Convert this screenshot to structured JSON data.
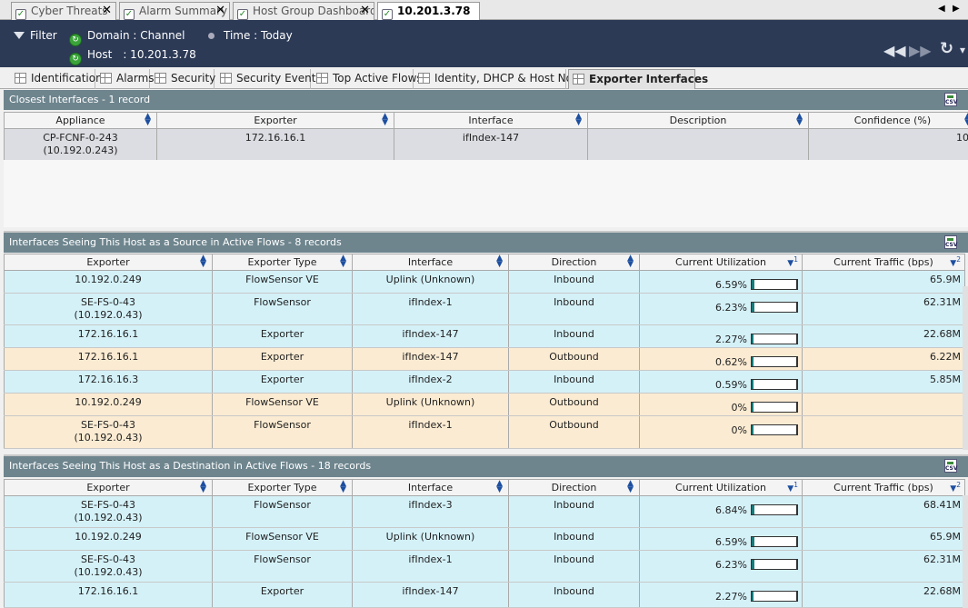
{
  "tabs": [
    {
      "label": "Cyber Threats"
    },
    {
      "label": "Alarm Summary"
    },
    {
      "label": "Host Group Dashboard"
    },
    {
      "label": "10.201.3.78"
    }
  ],
  "header": {
    "filter": "Filter",
    "domain": "Domain : Channel",
    "time": "Time : Today",
    "host_label": "Host",
    "host_value": ": 10.201.3.78"
  },
  "subtabs": [
    {
      "label": "Identification"
    },
    {
      "label": "Alarms"
    },
    {
      "label": "Security"
    },
    {
      "label": "Security Events"
    },
    {
      "label": "Top Active Flows"
    },
    {
      "label": "Identity, DHCP & Host Notes"
    },
    {
      "label": "Exporter Interfaces"
    }
  ],
  "closest": {
    "title": "Closest Interfaces - 1 record",
    "columns": [
      "Appliance",
      "Exporter",
      "Interface",
      "Description",
      "Confidence (%)"
    ],
    "rows": [
      {
        "appliance": "CP-FCNF-0-243",
        "appliance2": "(10.192.0.243)",
        "exporter": "172.16.16.1",
        "interface": "ifIndex-147",
        "description": "",
        "confidence": "10"
      }
    ]
  },
  "source": {
    "title": "Interfaces Seeing This Host as a Source in Active Flows - 8 records",
    "columns": [
      "Exporter",
      "Exporter Type",
      "Interface",
      "Direction",
      "Current Utilization",
      "Current Traffic (bps)"
    ],
    "sort1": "1",
    "sort2": "2",
    "rows": [
      {
        "exp": "10.192.0.249",
        "exp2": "",
        "type": "FlowSensor VE",
        "iface": "Uplink (Unknown)",
        "dir": "Inbound",
        "util": "6.59%",
        "util_frac": 0.0659,
        "traffic": "65.9M"
      },
      {
        "exp": "SE-FS-0-43",
        "exp2": "(10.192.0.43)",
        "type": "FlowSensor",
        "iface": "ifIndex-1",
        "dir": "Inbound",
        "util": "6.23%",
        "util_frac": 0.0623,
        "traffic": "62.31M"
      },
      {
        "exp": "172.16.16.1",
        "exp2": "",
        "type": "Exporter",
        "iface": "ifIndex-147",
        "dir": "Inbound",
        "util": "2.27%",
        "util_frac": 0.0227,
        "traffic": "22.68M"
      },
      {
        "exp": "172.16.16.1",
        "exp2": "",
        "type": "Exporter",
        "iface": "ifIndex-147",
        "dir": "Outbound",
        "util": "0.62%",
        "util_frac": 0.0062,
        "traffic": "6.22M"
      },
      {
        "exp": "172.16.16.3",
        "exp2": "",
        "type": "Exporter",
        "iface": "ifIndex-2",
        "dir": "Inbound",
        "util": "0.59%",
        "util_frac": 0.0059,
        "traffic": "5.85M"
      },
      {
        "exp": "10.192.0.249",
        "exp2": "",
        "type": "FlowSensor VE",
        "iface": "Uplink (Unknown)",
        "dir": "Outbound",
        "util": "0%",
        "util_frac": 0,
        "traffic": ""
      },
      {
        "exp": "SE-FS-0-43",
        "exp2": "(10.192.0.43)",
        "type": "FlowSensor",
        "iface": "ifIndex-1",
        "dir": "Outbound",
        "util": "0%",
        "util_frac": 0,
        "traffic": ""
      }
    ]
  },
  "dest": {
    "title": "Interfaces Seeing This Host as a Destination in Active Flows - 18 records",
    "columns": [
      "Exporter",
      "Exporter Type",
      "Interface",
      "Direction",
      "Current Utilization",
      "Current Traffic (bps)"
    ],
    "sort1": "1",
    "sort2": "2",
    "rows": [
      {
        "exp": "SE-FS-0-43",
        "exp2": "(10.192.0.43)",
        "type": "FlowSensor",
        "iface": "ifIndex-3",
        "dir": "Inbound",
        "util": "6.84%",
        "util_frac": 0.0684,
        "traffic": "68.41M"
      },
      {
        "exp": "10.192.0.249",
        "exp2": "",
        "type": "FlowSensor VE",
        "iface": "Uplink (Unknown)",
        "dir": "Inbound",
        "util": "6.59%",
        "util_frac": 0.0659,
        "traffic": "65.9M"
      },
      {
        "exp": "SE-FS-0-43",
        "exp2": "(10.192.0.43)",
        "type": "FlowSensor",
        "iface": "ifIndex-1",
        "dir": "Inbound",
        "util": "6.23%",
        "util_frac": 0.0623,
        "traffic": "62.31M"
      },
      {
        "exp": "172.16.16.1",
        "exp2": "",
        "type": "Exporter",
        "iface": "ifIndex-147",
        "dir": "Inbound",
        "util": "2.27%",
        "util_frac": 0.0227,
        "traffic": "22.68M"
      }
    ]
  }
}
